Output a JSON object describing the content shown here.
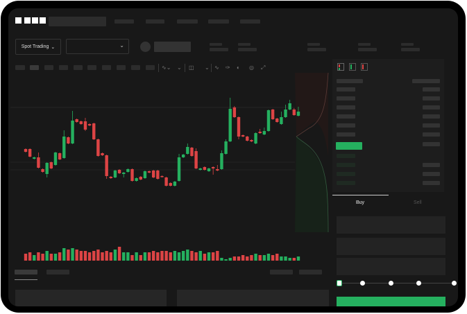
{
  "header": {
    "logo_text": "OKX",
    "nav_items": 5
  },
  "toolbar": {
    "market_button": "Spot Trading"
  },
  "trade_panel": {
    "buy_tab": "Buy",
    "sell_tab": "Sell",
    "active_tab": "Buy",
    "leverage_slider_value": 0,
    "slider_stops": 5
  },
  "colors": {
    "up": "#25b05f",
    "down": "#dd4445",
    "background": "#181818",
    "panel": "#1d1d1d"
  },
  "chart_data": {
    "type": "candlestick",
    "ylim": [
      35,
      185
    ],
    "grid": true,
    "candles_ohlc": [
      [
        97,
        98,
        92,
        93
      ],
      [
        97,
        98,
        85,
        86
      ],
      [
        83,
        86,
        82,
        85
      ],
      [
        85,
        92,
        69,
        70
      ],
      [
        68,
        69,
        63,
        64
      ],
      [
        61,
        78,
        56,
        77
      ],
      [
        78,
        79,
        68,
        69
      ],
      [
        74,
        93,
        73,
        92
      ],
      [
        91,
        92,
        81,
        82
      ],
      [
        84,
        124,
        83,
        115
      ],
      [
        114,
        115,
        104,
        105
      ],
      [
        105,
        152,
        104,
        138
      ],
      [
        140,
        141,
        135,
        136
      ],
      [
        137,
        138,
        132,
        133
      ],
      [
        137,
        142,
        123,
        125
      ],
      [
        133,
        134,
        130,
        131
      ],
      [
        134,
        135,
        110,
        111
      ],
      [
        111,
        112,
        86,
        87
      ],
      [
        91,
        92,
        87,
        88
      ],
      [
        88,
        89,
        54,
        58
      ],
      [
        57,
        58,
        54,
        55
      ],
      [
        56,
        67,
        55,
        66
      ],
      [
        67,
        68,
        61,
        62
      ],
      [
        61,
        64,
        56,
        63
      ],
      [
        64,
        69,
        63,
        68
      ],
      [
        68,
        69,
        50,
        51
      ],
      [
        51,
        56,
        50,
        55
      ],
      [
        57,
        58,
        52,
        53
      ],
      [
        55,
        66,
        54,
        65
      ],
      [
        65,
        66,
        62,
        63
      ],
      [
        66,
        67,
        55,
        56
      ],
      [
        66,
        67,
        53,
        54
      ],
      [
        58,
        59,
        56,
        57
      ],
      [
        56,
        57,
        43,
        44
      ],
      [
        48,
        49,
        43,
        44
      ],
      [
        44,
        51,
        43,
        50
      ],
      [
        51,
        90,
        50,
        85
      ],
      [
        85,
        90,
        84,
        89
      ],
      [
        90,
        105,
        89,
        100
      ],
      [
        99,
        100,
        86,
        87
      ],
      [
        94,
        98,
        68,
        69
      ],
      [
        67,
        70,
        66,
        69
      ],
      [
        71,
        72,
        66,
        67
      ],
      [
        65,
        70,
        64,
        69
      ],
      [
        71,
        72,
        60,
        69
      ],
      [
        68,
        74,
        65,
        66
      ],
      [
        68,
        95,
        67,
        91
      ],
      [
        90,
        111,
        89,
        108
      ],
      [
        108,
        171,
        107,
        155
      ],
      [
        157,
        159,
        142,
        143
      ],
      [
        143,
        144,
        111,
        115
      ],
      [
        117,
        118,
        114,
        115
      ],
      [
        115,
        116,
        108,
        109
      ],
      [
        110,
        111,
        107,
        108
      ],
      [
        105,
        121,
        104,
        120
      ],
      [
        122,
        126,
        119,
        120
      ],
      [
        118,
        128,
        117,
        123
      ],
      [
        123,
        154,
        122,
        153
      ],
      [
        154,
        155,
        139,
        140
      ],
      [
        141,
        142,
        135,
        136
      ],
      [
        133,
        151,
        132,
        143
      ],
      [
        143,
        161,
        142,
        154
      ],
      [
        154,
        168,
        153,
        163
      ],
      [
        154,
        156,
        145,
        146
      ],
      [
        145,
        158,
        144,
        151
      ]
    ],
    "volume": [
      5,
      6,
      4,
      6,
      5,
      7,
      5,
      5,
      6,
      9,
      8,
      9,
      8,
      7,
      7,
      6,
      7,
      8,
      6,
      7,
      6,
      8,
      10,
      6,
      6,
      4,
      6,
      4,
      6,
      6,
      7,
      6,
      7,
      7,
      6,
      7,
      6,
      7,
      8,
      7,
      6,
      7,
      5,
      6,
      6,
      7,
      2,
      1,
      2,
      3,
      3,
      4,
      3,
      4,
      5,
      4,
      4,
      5,
      4,
      5,
      3,
      3,
      2,
      2,
      3
    ],
    "volume_max": 10
  }
}
